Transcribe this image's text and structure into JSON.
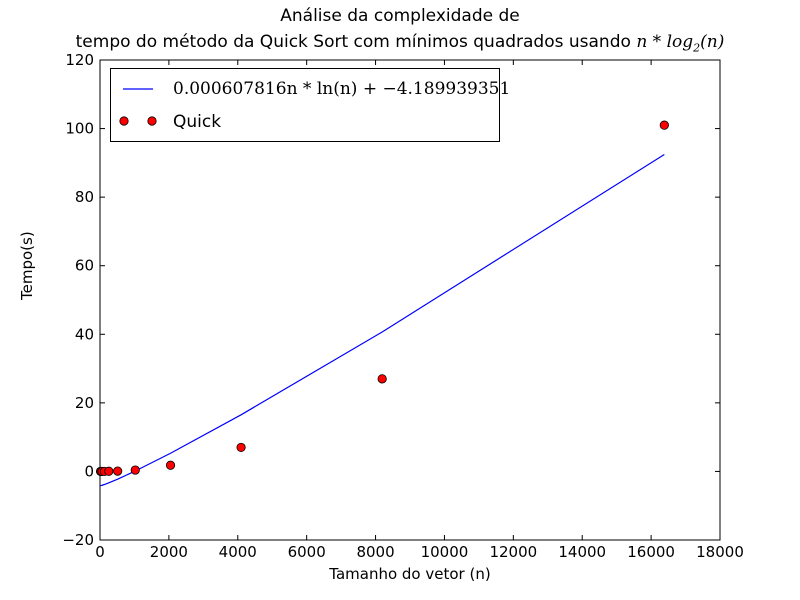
{
  "chart_data": {
    "type": "scatter",
    "title": "Análise da complexidade de",
    "subtitle_prefix": "tempo do método da Quick Sort com mínimos quadrados usando",
    "subtitle_math": "n * log",
    "subtitle_math_sub": "2",
    "subtitle_math_suffix": "(n)",
    "xlabel": "Tamanho do vetor (n)",
    "ylabel": "Tempo(s)",
    "xlim": [
      0,
      18000
    ],
    "ylim": [
      -20,
      120
    ],
    "xticks": [
      0,
      2000,
      4000,
      6000,
      8000,
      10000,
      12000,
      14000,
      16000,
      18000
    ],
    "yticks": [
      -20,
      0,
      20,
      40,
      60,
      80,
      100,
      120
    ],
    "grid": false,
    "legend_position": "upper-left",
    "series": [
      {
        "name": "0.000607816n * ln(n) + −4.189939351",
        "kind": "line",
        "color": "#0000ff",
        "coef_a": 0.000607816,
        "coef_b": -4.189939351,
        "x": [
          16,
          32,
          64,
          128,
          256,
          512,
          1024,
          2048,
          4096,
          8192,
          16384
        ]
      },
      {
        "name": "Quick",
        "kind": "markers",
        "color": "#ff0000",
        "x": [
          16,
          32,
          64,
          128,
          256,
          512,
          1024,
          2048,
          4096,
          8192,
          16384
        ],
        "y": [
          0.0,
          0.0,
          0.0,
          0.0,
          0.05,
          0.1,
          0.4,
          1.8,
          7.0,
          27.0,
          101.0
        ]
      }
    ]
  }
}
